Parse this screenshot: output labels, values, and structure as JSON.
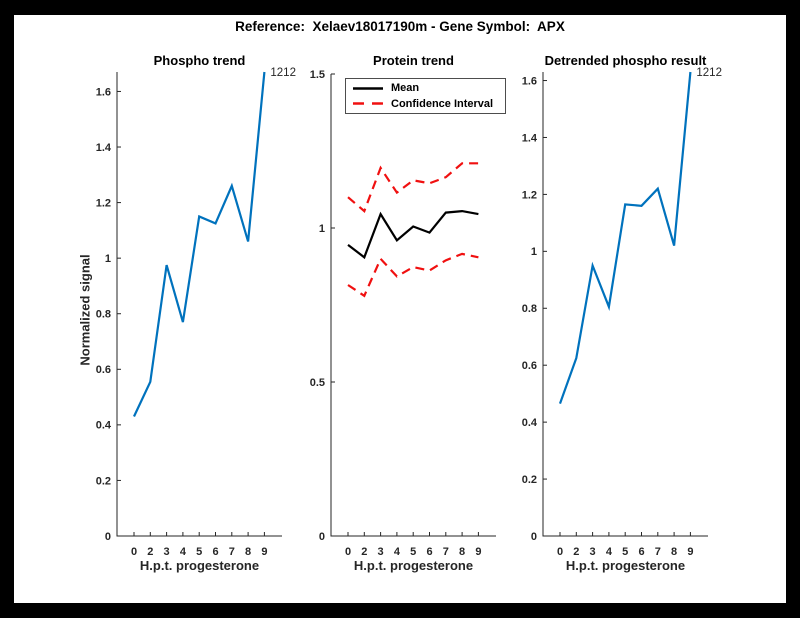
{
  "figure_title": "Reference:  Xelaev18017190m - Gene Symbol:  APX",
  "ylabel_left": "Normalized signal",
  "annotation_text": "1212",
  "colors": {
    "line_blue": "#0072BD",
    "ci_red": "#f01010",
    "mean_black": "#000000",
    "axis": "#262626",
    "frame_bg": "#000000",
    "canvas_bg": "#ffffff"
  },
  "legend_labels": [
    "Mean",
    "Confidence Interval"
  ],
  "chart_data": [
    {
      "type": "line",
      "title": "Phospho trend",
      "xlabel": "H.p.t. progesterone",
      "ylabel": "Normalized signal",
      "x": [
        0,
        2,
        3,
        4,
        5,
        6,
        7,
        8,
        9
      ],
      "x_tick_labels": [
        "0",
        "2",
        "3",
        "4",
        "5",
        "6",
        "7",
        "8",
        "9"
      ],
      "x_spacing": "equal",
      "series": [
        {
          "name": "phospho-signal",
          "color": "#0072BD",
          "style": "solid",
          "values": [
            0.43,
            0.555,
            0.975,
            0.77,
            1.15,
            1.125,
            1.26,
            1.06,
            1.67
          ]
        }
      ],
      "ylim": [
        0,
        1.67
      ],
      "yticks": [
        0,
        0.2,
        0.4,
        0.6,
        0.8,
        1,
        1.2,
        1.4,
        1.6
      ],
      "grid": false,
      "annotation": {
        "text": "1212",
        "at": "last-point"
      }
    },
    {
      "type": "line",
      "title": "Protein trend",
      "xlabel": "H.p.t. progesterone",
      "ylabel": "",
      "x": [
        0,
        2,
        3,
        4,
        5,
        6,
        7,
        8,
        9
      ],
      "x_tick_labels": [
        "0",
        "2",
        "3",
        "4",
        "5",
        "6",
        "7",
        "8",
        "9"
      ],
      "x_spacing": "equal",
      "series": [
        {
          "name": "ci-upper",
          "color": "#f01010",
          "style": "dashed",
          "values": [
            1.1,
            1.055,
            1.195,
            1.115,
            1.155,
            1.145,
            1.165,
            1.21,
            1.21
          ]
        },
        {
          "name": "ci-lower",
          "color": "#f01010",
          "style": "dashed",
          "values": [
            0.815,
            0.78,
            0.9,
            0.843,
            0.873,
            0.862,
            0.895,
            0.916,
            0.905
          ]
        },
        {
          "name": "mean",
          "color": "#000000",
          "style": "solid",
          "values": [
            0.945,
            0.905,
            1.045,
            0.96,
            1.005,
            0.985,
            1.05,
            1.055,
            1.045
          ]
        }
      ],
      "ylim": [
        0,
        1.5
      ],
      "yticks": [
        0,
        0.5,
        1,
        1.5
      ],
      "grid": false,
      "legend": [
        "Mean",
        "Confidence Interval"
      ],
      "legend_position": "upper-left-inside"
    },
    {
      "type": "line",
      "title": "Detrended phospho result",
      "xlabel": "H.p.t. progesterone",
      "ylabel": "",
      "x": [
        0,
        2,
        3,
        4,
        5,
        6,
        7,
        8,
        9
      ],
      "x_tick_labels": [
        "0",
        "2",
        "3",
        "4",
        "5",
        "6",
        "7",
        "8",
        "9"
      ],
      "x_spacing": "equal",
      "series": [
        {
          "name": "detrended-phospho",
          "color": "#0072BD",
          "style": "solid",
          "values": [
            0.465,
            0.625,
            0.95,
            0.805,
            1.165,
            1.16,
            1.22,
            1.02,
            1.63
          ]
        }
      ],
      "ylim": [
        0,
        1.63
      ],
      "yticks": [
        0,
        0.2,
        0.4,
        0.6,
        0.8,
        1,
        1.2,
        1.4,
        1.6
      ],
      "grid": false,
      "annotation": {
        "text": "1212",
        "at": "last-point"
      }
    }
  ]
}
